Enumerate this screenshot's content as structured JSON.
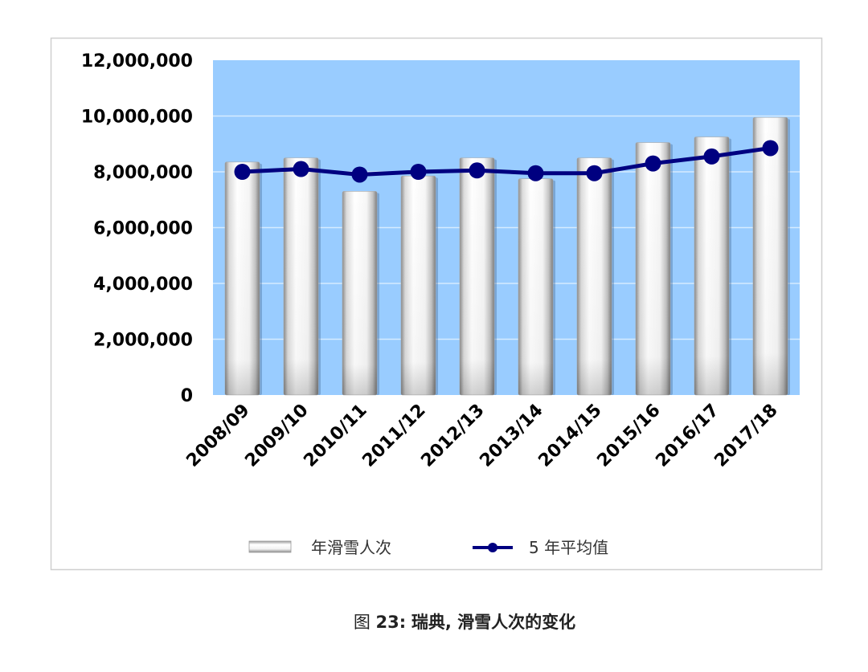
{
  "chart_data": {
    "type": "bar",
    "categories": [
      "2008/09",
      "2009/10",
      "2010/11",
      "2011/12",
      "2012/13",
      "2013/14",
      "2014/15",
      "2015/16",
      "2016/17",
      "2017/18"
    ],
    "series": [
      {
        "name": "年滑雪人次",
        "type": "bar",
        "values": [
          8350000,
          8500000,
          7300000,
          7850000,
          8500000,
          7750000,
          8500000,
          9050000,
          9250000,
          9950000
        ]
      },
      {
        "name": "5 年平均值",
        "type": "line",
        "values": [
          8000000,
          8100000,
          7900000,
          8000000,
          8050000,
          7950000,
          7950000,
          8300000,
          8550000,
          8850000
        ]
      }
    ],
    "y_ticks": [
      0,
      2000000,
      4000000,
      6000000,
      8000000,
      10000000,
      12000000
    ],
    "ylim": [
      0,
      12000000
    ],
    "grid": true,
    "legend_position": "bottom",
    "colors": {
      "plot_background": "#99CCFF",
      "line": "#000080",
      "bar": "#FFFFFF",
      "gridline": "#FFFFFF",
      "frame": "#CFCFCF"
    }
  },
  "caption": {
    "label": "图",
    "number": "23:",
    "text": "瑞典, 滑雪人次的变化"
  }
}
